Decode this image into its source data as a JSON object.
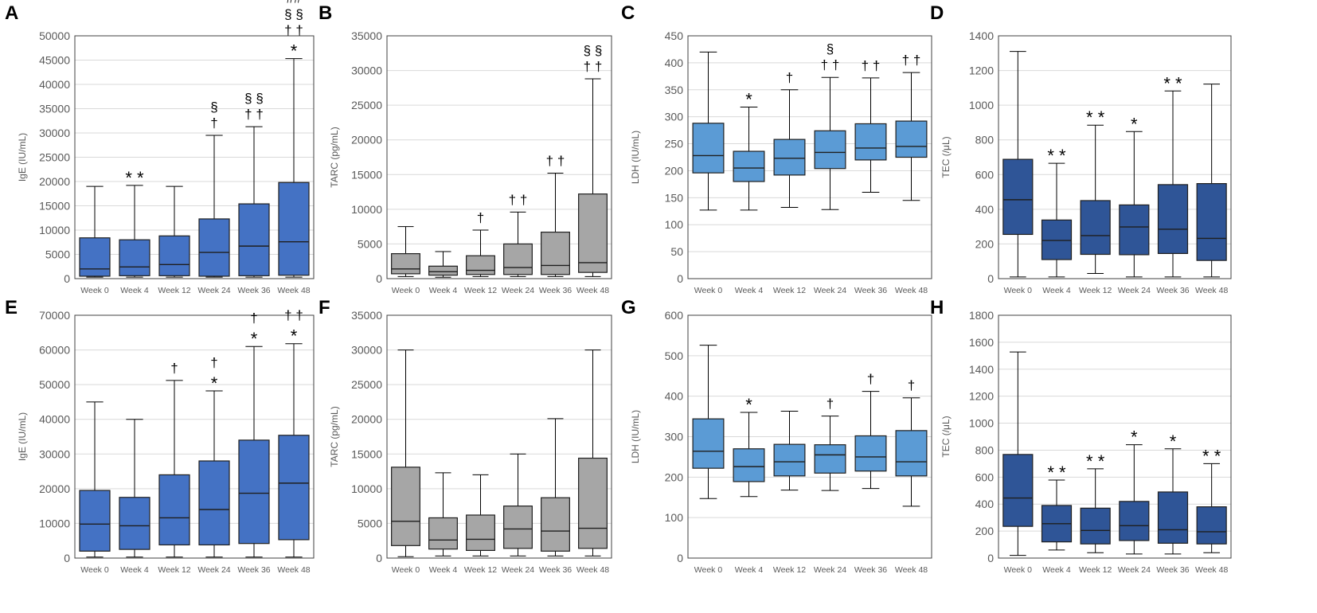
{
  "figure": {
    "width": 1654,
    "height": 770
  },
  "chart_data": [
    {
      "panel": "A",
      "type": "box",
      "ylabel": "IgE (IU/mL)",
      "ylim": [
        0,
        50000
      ],
      "yticks": [
        0,
        5000,
        10000,
        15000,
        20000,
        25000,
        30000,
        35000,
        40000,
        45000,
        50000
      ],
      "color": "#4472c4",
      "categories": [
        "Week 0",
        "Week 4",
        "Week 12",
        "Week 24",
        "Week 36",
        "Week 48"
      ],
      "boxes": [
        {
          "min": 300,
          "q1": 500,
          "median": 2000,
          "q3": 8400,
          "max": 19000
        },
        {
          "min": 300,
          "q1": 600,
          "median": 2400,
          "q3": 8000,
          "max": 19200
        },
        {
          "min": 300,
          "q1": 600,
          "median": 2900,
          "q3": 8800,
          "max": 19000
        },
        {
          "min": 300,
          "q1": 500,
          "median": 5400,
          "q3": 12300,
          "max": 29500
        },
        {
          "min": 300,
          "q1": 600,
          "median": 6700,
          "q3": 15400,
          "max": 31300
        },
        {
          "min": 300,
          "q1": 700,
          "median": 7600,
          "q3": 19800,
          "max": 45300
        }
      ],
      "annotations": [
        {
          "cat": 1,
          "lines": [
            "* *"
          ]
        },
        {
          "cat": 3,
          "lines": [
            "§",
            "†"
          ]
        },
        {
          "cat": 4,
          "lines": [
            "§ §",
            "† †"
          ]
        },
        {
          "cat": 5,
          "lines": [
            "##",
            "§ §",
            "† †",
            "*"
          ]
        }
      ]
    },
    {
      "panel": "B",
      "type": "box",
      "ylabel": "TARC (pg/mL)",
      "ylim": [
        0,
        35000
      ],
      "yticks": [
        0,
        5000,
        10000,
        15000,
        20000,
        25000,
        30000,
        35000
      ],
      "color": "#a6a6a6",
      "categories": [
        "Week 0",
        "Week 4",
        "Week 12",
        "Week 24",
        "Week 36",
        "Week 48"
      ],
      "boxes": [
        {
          "min": 300,
          "q1": 700,
          "median": 1400,
          "q3": 3600,
          "max": 7500
        },
        {
          "min": 200,
          "q1": 500,
          "median": 1000,
          "q3": 1800,
          "max": 3900
        },
        {
          "min": 300,
          "q1": 600,
          "median": 1200,
          "q3": 3300,
          "max": 7000
        },
        {
          "min": 300,
          "q1": 600,
          "median": 1600,
          "q3": 5000,
          "max": 9600
        },
        {
          "min": 300,
          "q1": 600,
          "median": 1900,
          "q3": 6700,
          "max": 15200
        },
        {
          "min": 300,
          "q1": 900,
          "median": 2300,
          "q3": 12200,
          "max": 28800
        }
      ],
      "annotations": [
        {
          "cat": 2,
          "lines": [
            "†"
          ]
        },
        {
          "cat": 3,
          "lines": [
            "† †"
          ]
        },
        {
          "cat": 4,
          "lines": [
            "† †"
          ]
        },
        {
          "cat": 5,
          "lines": [
            "§ §",
            "† †"
          ]
        }
      ]
    },
    {
      "panel": "C",
      "type": "box",
      "ylabel": "LDH (IU/mL)",
      "ylim": [
        0,
        450
      ],
      "yticks": [
        0,
        50,
        100,
        150,
        200,
        250,
        300,
        350,
        400,
        450
      ],
      "color": "#5b9bd5",
      "categories": [
        "Week 0",
        "Week 4",
        "Week 12",
        "Week 24",
        "Week 36",
        "Week 48"
      ],
      "boxes": [
        {
          "min": 127,
          "q1": 196,
          "median": 228,
          "q3": 288,
          "max": 420
        },
        {
          "min": 127,
          "q1": 180,
          "median": 205,
          "q3": 236,
          "max": 318
        },
        {
          "min": 132,
          "q1": 192,
          "median": 223,
          "q3": 258,
          "max": 350
        },
        {
          "min": 128,
          "q1": 204,
          "median": 234,
          "q3": 274,
          "max": 373
        },
        {
          "min": 160,
          "q1": 220,
          "median": 242,
          "q3": 287,
          "max": 372
        },
        {
          "min": 145,
          "q1": 225,
          "median": 245,
          "q3": 292,
          "max": 382
        }
      ],
      "annotations": [
        {
          "cat": 1,
          "lines": [
            "*"
          ]
        },
        {
          "cat": 2,
          "lines": [
            "†"
          ]
        },
        {
          "cat": 3,
          "lines": [
            "§",
            "† †"
          ]
        },
        {
          "cat": 4,
          "lines": [
            "† †"
          ]
        },
        {
          "cat": 5,
          "lines": [
            "† †"
          ]
        }
      ]
    },
    {
      "panel": "D",
      "type": "box",
      "ylabel": "TEC (/μL)",
      "ylim": [
        0,
        1400
      ],
      "yticks": [
        0,
        200,
        400,
        600,
        800,
        1000,
        1200,
        1400
      ],
      "color": "#2f5597",
      "categories": [
        "Week 0",
        "Week 4",
        "Week 12",
        "Week 24",
        "Week 36",
        "Week 48"
      ],
      "boxes": [
        {
          "min": 10,
          "q1": 255,
          "median": 455,
          "q3": 688,
          "max": 1310
        },
        {
          "min": 10,
          "q1": 110,
          "median": 220,
          "q3": 338,
          "max": 665
        },
        {
          "min": 30,
          "q1": 140,
          "median": 248,
          "q3": 450,
          "max": 885
        },
        {
          "min": 10,
          "q1": 138,
          "median": 298,
          "q3": 425,
          "max": 848
        },
        {
          "min": 10,
          "q1": 145,
          "median": 285,
          "q3": 542,
          "max": 1082
        },
        {
          "min": 10,
          "q1": 105,
          "median": 232,
          "q3": 548,
          "max": 1122
        }
      ],
      "annotations": [
        {
          "cat": 1,
          "lines": [
            "* *"
          ]
        },
        {
          "cat": 2,
          "lines": [
            "* *"
          ]
        },
        {
          "cat": 3,
          "lines": [
            "*"
          ]
        },
        {
          "cat": 4,
          "lines": [
            "* *"
          ]
        }
      ]
    },
    {
      "panel": "E",
      "type": "box",
      "ylabel": "IgE (IU/mL)",
      "ylim": [
        0,
        70000
      ],
      "yticks": [
        0,
        10000,
        20000,
        30000,
        40000,
        50000,
        60000,
        70000
      ],
      "color": "#4472c4",
      "categories": [
        "Week 0",
        "Week 4",
        "Week 12",
        "Week 24",
        "Week 36",
        "Week 48"
      ],
      "boxes": [
        {
          "min": 300,
          "q1": 2000,
          "median": 9800,
          "q3": 19500,
          "max": 45000
        },
        {
          "min": 300,
          "q1": 2500,
          "median": 9300,
          "q3": 17500,
          "max": 40000
        },
        {
          "min": 300,
          "q1": 3800,
          "median": 11600,
          "q3": 24000,
          "max": 51200
        },
        {
          "min": 300,
          "q1": 3800,
          "median": 14000,
          "q3": 28000,
          "max": 48200
        },
        {
          "min": 300,
          "q1": 4200,
          "median": 18700,
          "q3": 34000,
          "max": 61000
        },
        {
          "min": 300,
          "q1": 5300,
          "median": 21600,
          "q3": 35400,
          "max": 61800
        }
      ],
      "annotations": [
        {
          "cat": 2,
          "lines": [
            "†"
          ]
        },
        {
          "cat": 3,
          "lines": [
            "†",
            "*"
          ]
        },
        {
          "cat": 4,
          "lines": [
            "†",
            "*"
          ]
        },
        {
          "cat": 5,
          "lines": [
            "† †",
            "*"
          ]
        }
      ]
    },
    {
      "panel": "F",
      "type": "box",
      "ylabel": "TARC (pg/mL)",
      "ylim": [
        0,
        35000
      ],
      "yticks": [
        0,
        5000,
        10000,
        15000,
        20000,
        25000,
        30000,
        35000
      ],
      "color": "#a6a6a6",
      "categories": [
        "Week 0",
        "Week 4",
        "Week 12",
        "Week 24",
        "Week 36",
        "Week 48"
      ],
      "boxes": [
        {
          "min": 200,
          "q1": 1800,
          "median": 5300,
          "q3": 13100,
          "max": 30000
        },
        {
          "min": 300,
          "q1": 1300,
          "median": 2600,
          "q3": 5800,
          "max": 12300
        },
        {
          "min": 300,
          "q1": 1100,
          "median": 2700,
          "q3": 6200,
          "max": 12000
        },
        {
          "min": 300,
          "q1": 1400,
          "median": 4200,
          "q3": 7500,
          "max": 15000
        },
        {
          "min": 300,
          "q1": 1000,
          "median": 3900,
          "q3": 8700,
          "max": 20100
        },
        {
          "min": 300,
          "q1": 1400,
          "median": 4300,
          "q3": 14400,
          "max": 30000
        }
      ],
      "annotations": []
    },
    {
      "panel": "G",
      "type": "box",
      "ylabel": "LDH (IU/mL)",
      "ylim": [
        0,
        600
      ],
      "yticks": [
        0,
        100,
        200,
        300,
        400,
        500,
        600
      ],
      "color": "#5b9bd5",
      "categories": [
        "Week 0",
        "Week 4",
        "Week 12",
        "Week 24",
        "Week 36",
        "Week 48"
      ],
      "boxes": [
        {
          "min": 147,
          "q1": 222,
          "median": 264,
          "q3": 344,
          "max": 526
        },
        {
          "min": 152,
          "q1": 189,
          "median": 226,
          "q3": 270,
          "max": 360
        },
        {
          "min": 168,
          "q1": 203,
          "median": 238,
          "q3": 281,
          "max": 363
        },
        {
          "min": 167,
          "q1": 210,
          "median": 255,
          "q3": 280,
          "max": 351
        },
        {
          "min": 172,
          "q1": 215,
          "median": 250,
          "q3": 302,
          "max": 412
        },
        {
          "min": 128,
          "q1": 203,
          "median": 238,
          "q3": 315,
          "max": 396
        }
      ],
      "annotations": [
        {
          "cat": 1,
          "lines": [
            "*"
          ]
        },
        {
          "cat": 3,
          "lines": [
            "†"
          ]
        },
        {
          "cat": 4,
          "lines": [
            "†"
          ]
        },
        {
          "cat": 5,
          "lines": [
            "†"
          ]
        }
      ]
    },
    {
      "panel": "H",
      "type": "box",
      "ylabel": "TEC (/μL)",
      "ylim": [
        0,
        1800
      ],
      "yticks": [
        0,
        200,
        400,
        600,
        800,
        1000,
        1200,
        1400,
        1600,
        1800
      ],
      "color": "#2f5597",
      "categories": [
        "Week 0",
        "Week 4",
        "Week 12",
        "Week 24",
        "Week 36",
        "Week 48"
      ],
      "boxes": [
        {
          "min": 20,
          "q1": 235,
          "median": 445,
          "q3": 768,
          "max": 1528
        },
        {
          "min": 60,
          "q1": 120,
          "median": 255,
          "q3": 390,
          "max": 578
        },
        {
          "min": 40,
          "q1": 105,
          "median": 205,
          "q3": 370,
          "max": 662
        },
        {
          "min": 30,
          "q1": 130,
          "median": 240,
          "q3": 420,
          "max": 840
        },
        {
          "min": 30,
          "q1": 110,
          "median": 210,
          "q3": 490,
          "max": 810
        },
        {
          "min": 40,
          "q1": 105,
          "median": 195,
          "q3": 380,
          "max": 700
        }
      ],
      "annotations": [
        {
          "cat": 1,
          "lines": [
            "* *"
          ]
        },
        {
          "cat": 2,
          "lines": [
            "* *"
          ]
        },
        {
          "cat": 3,
          "lines": [
            "*"
          ]
        },
        {
          "cat": 4,
          "lines": [
            "*"
          ]
        },
        {
          "cat": 5,
          "lines": [
            "* *"
          ]
        }
      ]
    }
  ]
}
